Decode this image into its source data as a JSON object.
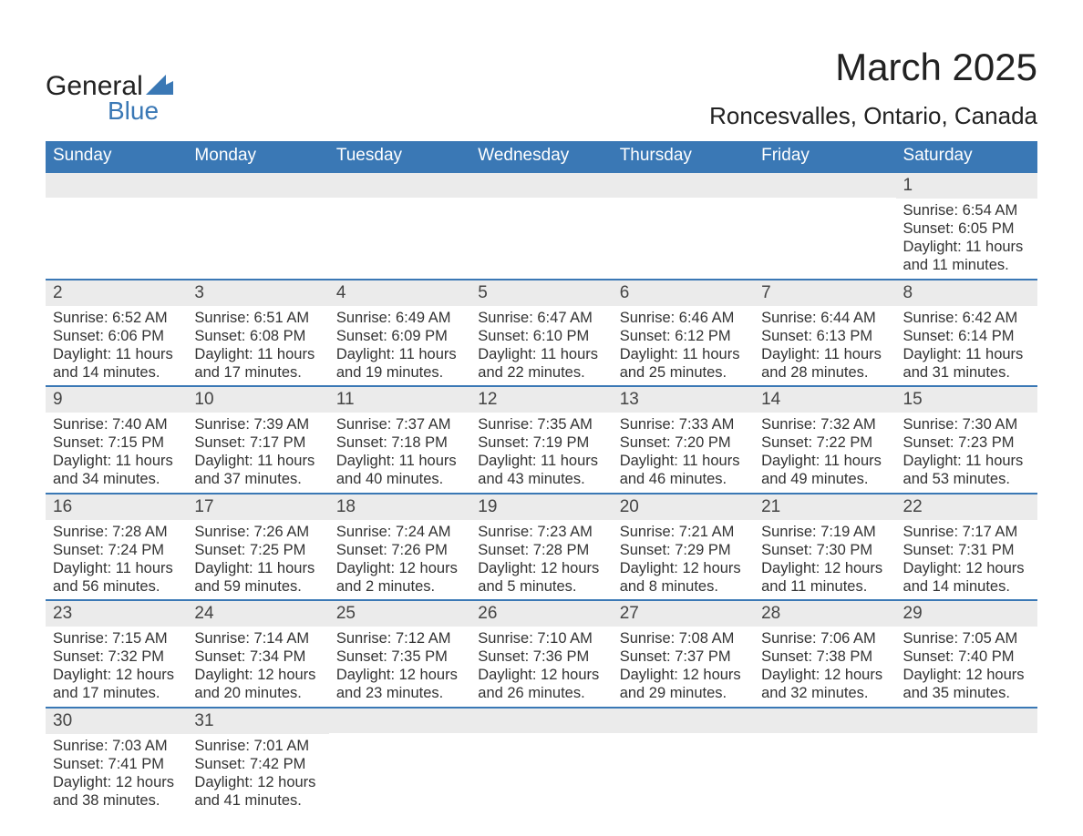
{
  "logo": {
    "text1": "General",
    "text2": "Blue",
    "shape_color": "#3a78b5"
  },
  "title": "March 2025",
  "location": "Roncesvalles, Ontario, Canada",
  "header_bg": "#3a78b5",
  "header_fg": "#ffffff",
  "daynum_bg": "#ebebeb",
  "border_color": "#3a78b5",
  "days_of_week": [
    "Sunday",
    "Monday",
    "Tuesday",
    "Wednesday",
    "Thursday",
    "Friday",
    "Saturday"
  ],
  "weeks": [
    [
      {
        "n": "",
        "sr": "",
        "ss": "",
        "dl": ""
      },
      {
        "n": "",
        "sr": "",
        "ss": "",
        "dl": ""
      },
      {
        "n": "",
        "sr": "",
        "ss": "",
        "dl": ""
      },
      {
        "n": "",
        "sr": "",
        "ss": "",
        "dl": ""
      },
      {
        "n": "",
        "sr": "",
        "ss": "",
        "dl": ""
      },
      {
        "n": "",
        "sr": "",
        "ss": "",
        "dl": ""
      },
      {
        "n": "1",
        "sr": "Sunrise: 6:54 AM",
        "ss": "Sunset: 6:05 PM",
        "dl": "Daylight: 11 hours and 11 minutes."
      }
    ],
    [
      {
        "n": "2",
        "sr": "Sunrise: 6:52 AM",
        "ss": "Sunset: 6:06 PM",
        "dl": "Daylight: 11 hours and 14 minutes."
      },
      {
        "n": "3",
        "sr": "Sunrise: 6:51 AM",
        "ss": "Sunset: 6:08 PM",
        "dl": "Daylight: 11 hours and 17 minutes."
      },
      {
        "n": "4",
        "sr": "Sunrise: 6:49 AM",
        "ss": "Sunset: 6:09 PM",
        "dl": "Daylight: 11 hours and 19 minutes."
      },
      {
        "n": "5",
        "sr": "Sunrise: 6:47 AM",
        "ss": "Sunset: 6:10 PM",
        "dl": "Daylight: 11 hours and 22 minutes."
      },
      {
        "n": "6",
        "sr": "Sunrise: 6:46 AM",
        "ss": "Sunset: 6:12 PM",
        "dl": "Daylight: 11 hours and 25 minutes."
      },
      {
        "n": "7",
        "sr": "Sunrise: 6:44 AM",
        "ss": "Sunset: 6:13 PM",
        "dl": "Daylight: 11 hours and 28 minutes."
      },
      {
        "n": "8",
        "sr": "Sunrise: 6:42 AM",
        "ss": "Sunset: 6:14 PM",
        "dl": "Daylight: 11 hours and 31 minutes."
      }
    ],
    [
      {
        "n": "9",
        "sr": "Sunrise: 7:40 AM",
        "ss": "Sunset: 7:15 PM",
        "dl": "Daylight: 11 hours and 34 minutes."
      },
      {
        "n": "10",
        "sr": "Sunrise: 7:39 AM",
        "ss": "Sunset: 7:17 PM",
        "dl": "Daylight: 11 hours and 37 minutes."
      },
      {
        "n": "11",
        "sr": "Sunrise: 7:37 AM",
        "ss": "Sunset: 7:18 PM",
        "dl": "Daylight: 11 hours and 40 minutes."
      },
      {
        "n": "12",
        "sr": "Sunrise: 7:35 AM",
        "ss": "Sunset: 7:19 PM",
        "dl": "Daylight: 11 hours and 43 minutes."
      },
      {
        "n": "13",
        "sr": "Sunrise: 7:33 AM",
        "ss": "Sunset: 7:20 PM",
        "dl": "Daylight: 11 hours and 46 minutes."
      },
      {
        "n": "14",
        "sr": "Sunrise: 7:32 AM",
        "ss": "Sunset: 7:22 PM",
        "dl": "Daylight: 11 hours and 49 minutes."
      },
      {
        "n": "15",
        "sr": "Sunrise: 7:30 AM",
        "ss": "Sunset: 7:23 PM",
        "dl": "Daylight: 11 hours and 53 minutes."
      }
    ],
    [
      {
        "n": "16",
        "sr": "Sunrise: 7:28 AM",
        "ss": "Sunset: 7:24 PM",
        "dl": "Daylight: 11 hours and 56 minutes."
      },
      {
        "n": "17",
        "sr": "Sunrise: 7:26 AM",
        "ss": "Sunset: 7:25 PM",
        "dl": "Daylight: 11 hours and 59 minutes."
      },
      {
        "n": "18",
        "sr": "Sunrise: 7:24 AM",
        "ss": "Sunset: 7:26 PM",
        "dl": "Daylight: 12 hours and 2 minutes."
      },
      {
        "n": "19",
        "sr": "Sunrise: 7:23 AM",
        "ss": "Sunset: 7:28 PM",
        "dl": "Daylight: 12 hours and 5 minutes."
      },
      {
        "n": "20",
        "sr": "Sunrise: 7:21 AM",
        "ss": "Sunset: 7:29 PM",
        "dl": "Daylight: 12 hours and 8 minutes."
      },
      {
        "n": "21",
        "sr": "Sunrise: 7:19 AM",
        "ss": "Sunset: 7:30 PM",
        "dl": "Daylight: 12 hours and 11 minutes."
      },
      {
        "n": "22",
        "sr": "Sunrise: 7:17 AM",
        "ss": "Sunset: 7:31 PM",
        "dl": "Daylight: 12 hours and 14 minutes."
      }
    ],
    [
      {
        "n": "23",
        "sr": "Sunrise: 7:15 AM",
        "ss": "Sunset: 7:32 PM",
        "dl": "Daylight: 12 hours and 17 minutes."
      },
      {
        "n": "24",
        "sr": "Sunrise: 7:14 AM",
        "ss": "Sunset: 7:34 PM",
        "dl": "Daylight: 12 hours and 20 minutes."
      },
      {
        "n": "25",
        "sr": "Sunrise: 7:12 AM",
        "ss": "Sunset: 7:35 PM",
        "dl": "Daylight: 12 hours and 23 minutes."
      },
      {
        "n": "26",
        "sr": "Sunrise: 7:10 AM",
        "ss": "Sunset: 7:36 PM",
        "dl": "Daylight: 12 hours and 26 minutes."
      },
      {
        "n": "27",
        "sr": "Sunrise: 7:08 AM",
        "ss": "Sunset: 7:37 PM",
        "dl": "Daylight: 12 hours and 29 minutes."
      },
      {
        "n": "28",
        "sr": "Sunrise: 7:06 AM",
        "ss": "Sunset: 7:38 PM",
        "dl": "Daylight: 12 hours and 32 minutes."
      },
      {
        "n": "29",
        "sr": "Sunrise: 7:05 AM",
        "ss": "Sunset: 7:40 PM",
        "dl": "Daylight: 12 hours and 35 minutes."
      }
    ],
    [
      {
        "n": "30",
        "sr": "Sunrise: 7:03 AM",
        "ss": "Sunset: 7:41 PM",
        "dl": "Daylight: 12 hours and 38 minutes."
      },
      {
        "n": "31",
        "sr": "Sunrise: 7:01 AM",
        "ss": "Sunset: 7:42 PM",
        "dl": "Daylight: 12 hours and 41 minutes."
      },
      {
        "n": "",
        "sr": "",
        "ss": "",
        "dl": ""
      },
      {
        "n": "",
        "sr": "",
        "ss": "",
        "dl": ""
      },
      {
        "n": "",
        "sr": "",
        "ss": "",
        "dl": ""
      },
      {
        "n": "",
        "sr": "",
        "ss": "",
        "dl": ""
      },
      {
        "n": "",
        "sr": "",
        "ss": "",
        "dl": ""
      }
    ]
  ]
}
